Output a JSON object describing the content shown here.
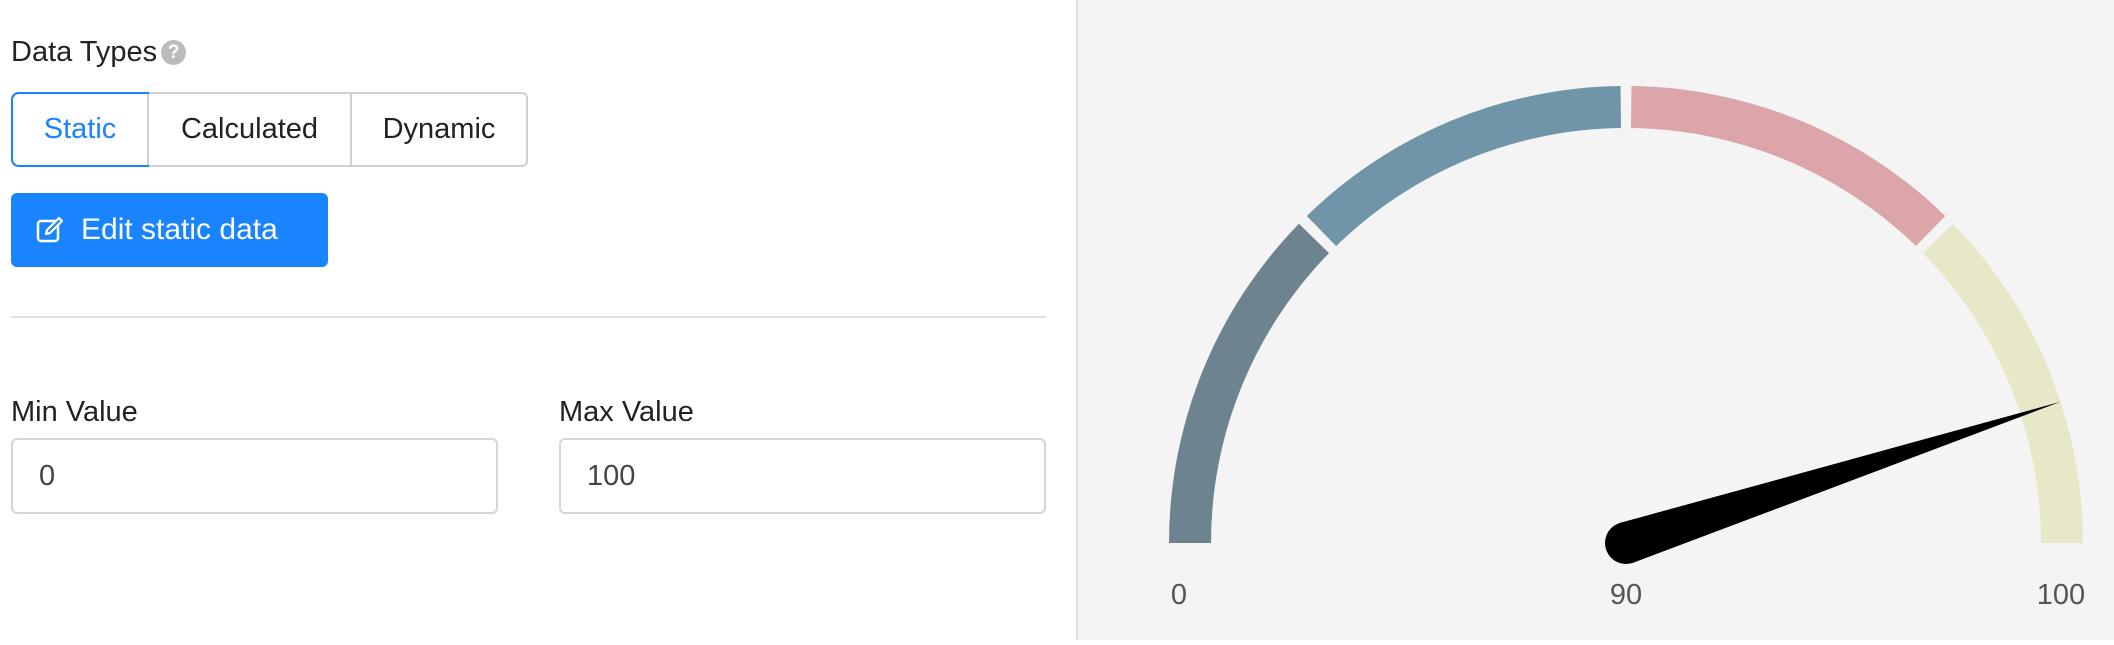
{
  "data_types": {
    "label": "Data Types",
    "help_icon": "question-circle-icon",
    "options": [
      "Static",
      "Calculated",
      "Dynamic"
    ],
    "selected": "Static"
  },
  "edit_button": {
    "label": "Edit static data",
    "icon": "edit-icon"
  },
  "min": {
    "label": "Min Value",
    "value": "0"
  },
  "max": {
    "label": "Max Value",
    "value": "100"
  },
  "colors": {
    "accent": "#1a84ff"
  },
  "chart_data": {
    "type": "gauge",
    "min": 0,
    "max": 100,
    "value": 90,
    "labels": {
      "min": "0",
      "value": "90",
      "max": "100"
    },
    "bands": [
      {
        "from": 0,
        "to": 25,
        "color": "#6e8390"
      },
      {
        "from": 25,
        "to": 50,
        "color": "#7095a8"
      },
      {
        "from": 50,
        "to": 75,
        "color": "#dba5aa"
      },
      {
        "from": 75,
        "to": 100,
        "color": "#e8e7c8"
      }
    ]
  }
}
